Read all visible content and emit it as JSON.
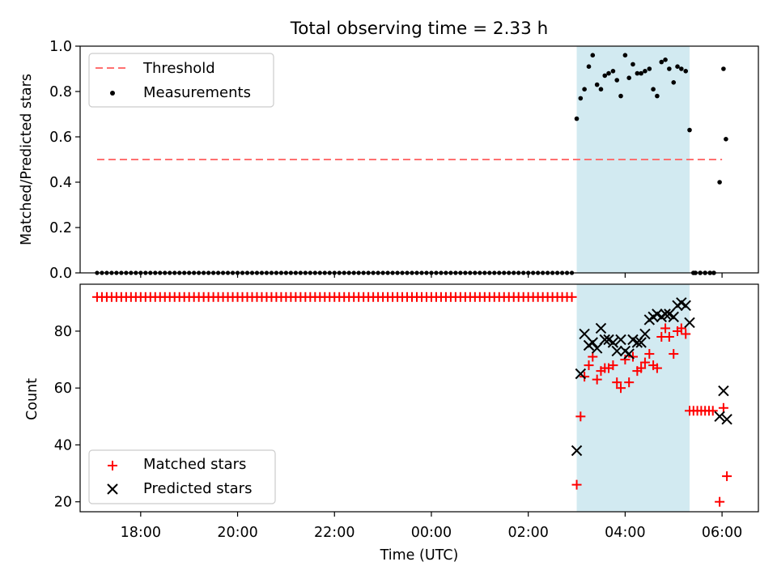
{
  "figure": {
    "title": "Total observing time = 2.33 h"
  },
  "chart_data": [
    {
      "type": "scatter",
      "ylabel": "Matched/Predicted stars",
      "xlim": [
        16.75,
        30.75
      ],
      "ylim": [
        0,
        1.0
      ],
      "yticks": [
        0.0,
        0.2,
        0.4,
        0.6,
        0.8,
        1.0
      ],
      "ytick_labels": [
        "0.0",
        "0.2",
        "0.4",
        "0.6",
        "0.8",
        "1.0"
      ],
      "highlight_span": [
        27.0,
        29.33
      ],
      "threshold": {
        "name": "Threshold",
        "y": 0.5,
        "x_range": [
          17.1,
          30.0
        ],
        "color": "#ff7070"
      },
      "series": [
        {
          "name": "Measurements",
          "color": "#000000",
          "zero_run": {
            "x_start": 17.1,
            "x_end": 26.98,
            "step": 0.1,
            "y": 0
          },
          "x": [
            27.0,
            27.08,
            27.16,
            27.25,
            27.33,
            27.42,
            27.5,
            27.58,
            27.66,
            27.75,
            27.83,
            27.91,
            28.0,
            28.08,
            28.16,
            28.25,
            28.33,
            28.41,
            28.5,
            28.58,
            28.66,
            28.75,
            28.83,
            28.91,
            29.0,
            29.08,
            29.16,
            29.25,
            29.33,
            29.41,
            29.45,
            29.55,
            29.65,
            29.75,
            29.83,
            29.95,
            30.03,
            30.08
          ],
          "y": [
            0.68,
            0.77,
            0.81,
            0.91,
            0.96,
            0.83,
            0.81,
            0.87,
            0.88,
            0.89,
            0.85,
            0.78,
            0.96,
            0.86,
            0.92,
            0.88,
            0.88,
            0.89,
            0.9,
            0.81,
            0.78,
            0.93,
            0.94,
            0.9,
            0.84,
            0.91,
            0.9,
            0.89,
            0.63,
            0.0,
            0.0,
            0.0,
            0.0,
            0.0,
            0.0,
            0.4,
            0.9,
            0.59
          ]
        }
      ],
      "legend": {
        "placement": "top-left",
        "entries": [
          "Threshold",
          "Measurements"
        ]
      }
    },
    {
      "type": "scatter",
      "xlabel": "Time (UTC)",
      "ylabel": "Count",
      "xlim": [
        16.75,
        30.75
      ],
      "ylim": [
        16.5,
        96.5
      ],
      "xticks": [
        18,
        20,
        22,
        24,
        26,
        28,
        30
      ],
      "xtick_labels": [
        "18:00",
        "20:00",
        "22:00",
        "00:00",
        "02:00",
        "04:00",
        "06:00"
      ],
      "yticks": [
        20,
        40,
        60,
        80
      ],
      "ytick_labels": [
        "20",
        "40",
        "60",
        "80"
      ],
      "highlight_span": [
        27.0,
        29.33
      ],
      "series": [
        {
          "name": "Matched stars",
          "marker": "plus",
          "color": "#ff0000",
          "flat_runs": [
            {
              "x_start": 17.1,
              "x_end": 26.98,
              "step": 0.1,
              "y": 92
            },
            {
              "x_start": 29.33,
              "x_end": 29.83,
              "step": 0.08,
              "y": 52
            }
          ],
          "x": [
            27.0,
            27.08,
            27.16,
            27.25,
            27.33,
            27.42,
            27.5,
            27.58,
            27.66,
            27.75,
            27.83,
            27.91,
            28.0,
            28.08,
            28.16,
            28.25,
            28.33,
            28.41,
            28.5,
            28.58,
            28.66,
            28.75,
            28.83,
            28.91,
            29.0,
            29.08,
            29.16,
            29.25,
            29.95,
            30.03,
            30.1
          ],
          "y": [
            26,
            50,
            64,
            68,
            71,
            63,
            66,
            67,
            67,
            68,
            62,
            60,
            70,
            62,
            71,
            66,
            67,
            69,
            72,
            68,
            67,
            78,
            81,
            78,
            72,
            80,
            81,
            79,
            20,
            53,
            29
          ]
        },
        {
          "name": "Predicted stars",
          "marker": "x",
          "color": "#000000",
          "x": [
            27.0,
            27.08,
            27.16,
            27.25,
            27.33,
            27.42,
            27.5,
            27.58,
            27.66,
            27.75,
            27.83,
            27.91,
            28.0,
            28.08,
            28.16,
            28.25,
            28.33,
            28.41,
            28.5,
            28.58,
            28.66,
            28.75,
            28.83,
            28.91,
            29.0,
            29.08,
            29.16,
            29.25,
            29.33,
            29.95,
            30.03,
            30.1
          ],
          "y": [
            38,
            65,
            79,
            75,
            76,
            74,
            81,
            77,
            77,
            76,
            73,
            77,
            73,
            72,
            77,
            76,
            76,
            79,
            84,
            85,
            86,
            85,
            86,
            86,
            85,
            89,
            90,
            89,
            83,
            50,
            59,
            49
          ]
        }
      ],
      "legend": {
        "placement": "bottom-left",
        "entries": [
          "Matched stars",
          "Predicted stars"
        ]
      }
    }
  ]
}
